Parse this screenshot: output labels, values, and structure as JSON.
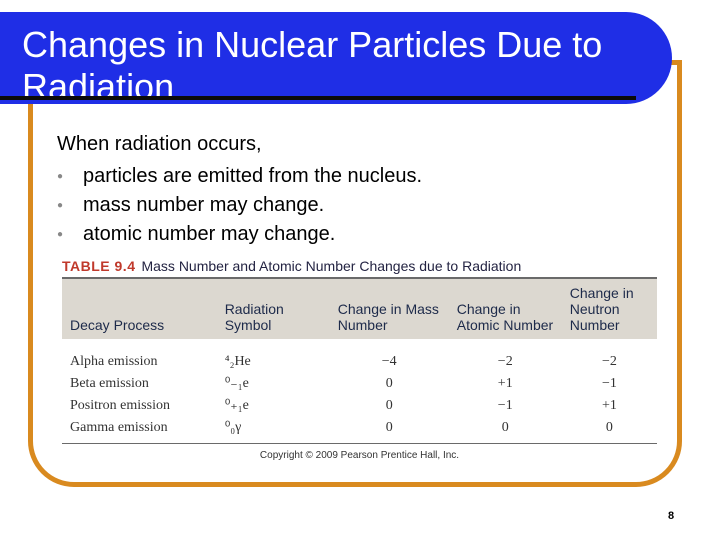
{
  "slide": {
    "title": "Changes in Nuclear Particles Due to Radiation",
    "intro": "When radiation occurs,",
    "bullets": [
      "particles are emitted from the nucleus.",
      "mass number may change.",
      "atomic number may change."
    ],
    "page_number": "8"
  },
  "table": {
    "label": "TABLE 9.4",
    "caption": "Mass Number and Atomic Number Changes due to Radiation",
    "headers": [
      "Decay Process",
      "Radiation Symbol",
      "Change in Mass Number",
      "Change in Atomic Number",
      "Change in Neutron Number"
    ],
    "rows": [
      {
        "process": "Alpha emission",
        "symbol": "⁴₂He",
        "mass": "−4",
        "atomic": "−2",
        "neutron": "−2"
      },
      {
        "process": "Beta emission",
        "symbol": "⁰₋₁e",
        "mass": "0",
        "atomic": "+1",
        "neutron": "−1"
      },
      {
        "process": "Positron emission",
        "symbol": "⁰₊₁e",
        "mass": "0",
        "atomic": "−1",
        "neutron": "+1"
      },
      {
        "process": "Gamma emission",
        "symbol": "⁰₀γ",
        "mass": "0",
        "atomic": "0",
        "neutron": "0"
      }
    ],
    "copyright": "Copyright © 2009 Pearson Prentice Hall, Inc."
  }
}
